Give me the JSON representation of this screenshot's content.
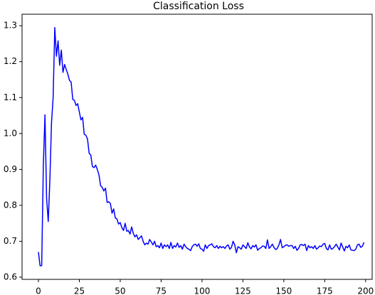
{
  "chart_data": {
    "type": "line",
    "title": "Classification Loss",
    "x": [
      0,
      1,
      2,
      3,
      4,
      5,
      6,
      7,
      8,
      9,
      10,
      11,
      12,
      13,
      14,
      15,
      16,
      17,
      18,
      19,
      20,
      21,
      22,
      23,
      24,
      25,
      26,
      27,
      28,
      29,
      30,
      31,
      32,
      33,
      34,
      35,
      36,
      37,
      38,
      39,
      40,
      41,
      42,
      43,
      44,
      45,
      46,
      47,
      48,
      49,
      50,
      51,
      52,
      53,
      54,
      55,
      56,
      57,
      58,
      59,
      60,
      61,
      62,
      63,
      64,
      65,
      66,
      67,
      68,
      69,
      70,
      71,
      72,
      73,
      74,
      75,
      76,
      77,
      78,
      79,
      80,
      81,
      82,
      83,
      84,
      85,
      86,
      87,
      88,
      89,
      90,
      91,
      92,
      93,
      94,
      95,
      96,
      97,
      98,
      99,
      100,
      101,
      102,
      103,
      104,
      105,
      106,
      107,
      108,
      109,
      110,
      111,
      112,
      113,
      114,
      115,
      116,
      117,
      118,
      119,
      120,
      121,
      122,
      123,
      124,
      125,
      126,
      127,
      128,
      129,
      130,
      131,
      132,
      133,
      134,
      135,
      136,
      137,
      138,
      139,
      140,
      141,
      142,
      143,
      144,
      145,
      146,
      147,
      148,
      149,
      150,
      151,
      152,
      153,
      154,
      155,
      156,
      157,
      158,
      159,
      160,
      161,
      162,
      163,
      164,
      165,
      166,
      167,
      168,
      169,
      170,
      171,
      172,
      173,
      174,
      175,
      176,
      177,
      178,
      179,
      180,
      181,
      182,
      183,
      184,
      185,
      186,
      187,
      188,
      189,
      190,
      191,
      192,
      193,
      194,
      195,
      196,
      197,
      198,
      199
    ],
    "series": [
      {
        "color": "#0000ff",
        "values": [
          0.67,
          0.632,
          0.632,
          0.91,
          1.052,
          0.82,
          0.755,
          0.87,
          1.03,
          1.1,
          1.295,
          1.215,
          1.258,
          1.19,
          1.232,
          1.17,
          1.192,
          1.178,
          1.165,
          1.148,
          1.143,
          1.095,
          1.092,
          1.078,
          1.083,
          1.06,
          1.038,
          1.045,
          0.998,
          0.995,
          0.985,
          0.945,
          0.94,
          0.908,
          0.905,
          0.912,
          0.9,
          0.885,
          0.855,
          0.85,
          0.84,
          0.848,
          0.808,
          0.81,
          0.805,
          0.778,
          0.79,
          0.765,
          0.762,
          0.748,
          0.752,
          0.738,
          0.73,
          0.75,
          0.728,
          0.73,
          0.72,
          0.74,
          0.722,
          0.712,
          0.718,
          0.705,
          0.71,
          0.715,
          0.7,
          0.69,
          0.695,
          0.692,
          0.705,
          0.698,
          0.69,
          0.7,
          0.685,
          0.688,
          0.682,
          0.695,
          0.68,
          0.69,
          0.685,
          0.69,
          0.68,
          0.697,
          0.68,
          0.688,
          0.684,
          0.695,
          0.683,
          0.688,
          0.678,
          0.692,
          0.685,
          0.68,
          0.678,
          0.674,
          0.685,
          0.69,
          0.692,
          0.686,
          0.693,
          0.68,
          0.678,
          0.672,
          0.69,
          0.68,
          0.688,
          0.69,
          0.693,
          0.685,
          0.682,
          0.688,
          0.68,
          0.686,
          0.682,
          0.685,
          0.68,
          0.687,
          0.69,
          0.678,
          0.683,
          0.7,
          0.69,
          0.668,
          0.685,
          0.682,
          0.678,
          0.69,
          0.685,
          0.68,
          0.696,
          0.684,
          0.679,
          0.688,
          0.684,
          0.69,
          0.675,
          0.68,
          0.682,
          0.687,
          0.686,
          0.68,
          0.704,
          0.68,
          0.685,
          0.692,
          0.683,
          0.677,
          0.68,
          0.69,
          0.705,
          0.682,
          0.685,
          0.689,
          0.69,
          0.686,
          0.688,
          0.688,
          0.68,
          0.686,
          0.675,
          0.68,
          0.69,
          0.691,
          0.688,
          0.692,
          0.674,
          0.688,
          0.682,
          0.685,
          0.68,
          0.688,
          0.678,
          0.682,
          0.687,
          0.685,
          0.692,
          0.694,
          0.68,
          0.676,
          0.69,
          0.678,
          0.68,
          0.685,
          0.692,
          0.684,
          0.676,
          0.695,
          0.684,
          0.673,
          0.686,
          0.682,
          0.69,
          0.676,
          0.675,
          0.674,
          0.678,
          0.69,
          0.692,
          0.683,
          0.686,
          0.697
        ]
      }
    ],
    "xlim": [
      -10,
      204
    ],
    "xticks": [
      0,
      25,
      50,
      75,
      100,
      125,
      150,
      175,
      200
    ],
    "ylim": [
      0.594,
      1.332
    ],
    "yticks": [
      0.6,
      0.7,
      0.8,
      0.9,
      {
        "value": 1,
        "label": "1.0"
      },
      1.1,
      1.2,
      1.3
    ],
    "grid": false
  }
}
